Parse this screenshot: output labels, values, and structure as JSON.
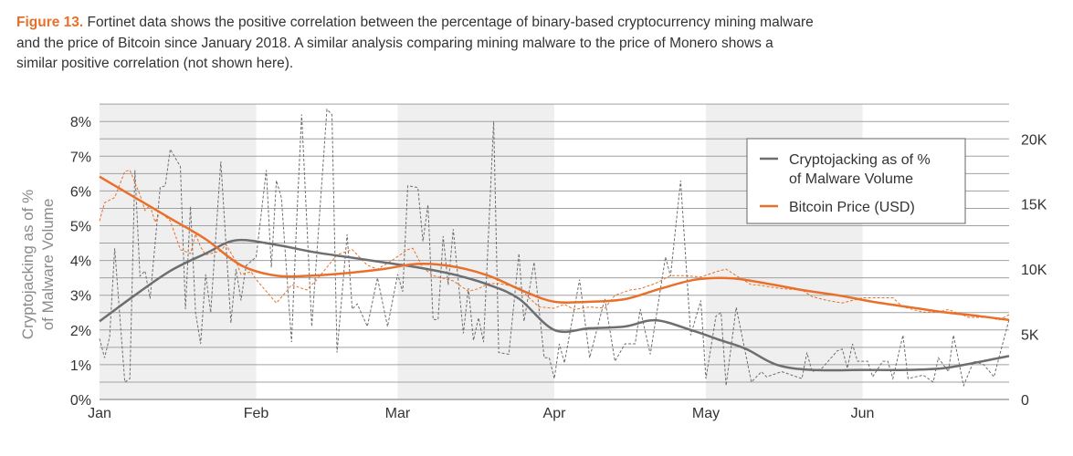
{
  "caption": {
    "label": "Figure 13.",
    "lines": [
      " Fortinet data shows the positive correlation between the percentage of binary-based cryptocurrency mining malware",
      "and the price of Bitcoin since January 2018. A similar analysis comparing mining malware to the price of Monero shows a",
      "similar positive correlation (not shown here)."
    ]
  },
  "chart_data": {
    "type": "line",
    "title": "",
    "ylabel": [
      "Cryptojacking as of %",
      "of Malware Volume"
    ],
    "y2label": "",
    "xlim": [
      "2018-01-01",
      "2018-06-30"
    ],
    "ylim": [
      0,
      8.5
    ],
    "y2lim": [
      0,
      22667
    ],
    "yticks": [
      "0%",
      "1%",
      "2%",
      "3%",
      "4%",
      "5%",
      "6%",
      "7%",
      "8%"
    ],
    "yticks_values": [
      0,
      1,
      2,
      3,
      4,
      5,
      6,
      7,
      8
    ],
    "y2ticks": [
      "0",
      "5K",
      "10K",
      "15K",
      "20K"
    ],
    "y2ticks_values": [
      0,
      5000,
      10000,
      15000,
      20000
    ],
    "xticks": [
      {
        "label": "Jan",
        "date": "2018-01-01"
      },
      {
        "label": "Feb",
        "date": "2018-02-01"
      },
      {
        "label": "Mar",
        "date": "2018-03-01"
      },
      {
        "label": "Apr",
        "date": "2018-04-01"
      },
      {
        "label": "May",
        "date": "2018-05-01"
      },
      {
        "label": "Jun",
        "date": "2018-06-01"
      }
    ],
    "shaded_months": [
      [
        "2018-01-01",
        "2018-02-01"
      ],
      [
        "2018-03-01",
        "2018-04-01"
      ],
      [
        "2018-05-01",
        "2018-06-01"
      ]
    ],
    "grid": true,
    "legend_placement": "top-right",
    "colors": {
      "cryptojacking": "#6d6e71",
      "bitcoin": "#e8702a",
      "shade": "#efefef",
      "grid": "#a0a0a0"
    },
    "legend": [
      {
        "lines": [
          "Cryptojacking as of %",
          "of Malware Volume"
        ],
        "series": "cryptojacking"
      },
      {
        "lines": [
          "Bitcoin Price (USD)"
        ],
        "series": "bitcoin"
      }
    ],
    "series": [
      {
        "key": "cryptojacking",
        "name": "Cryptojacking as of % of Malware Volume",
        "axis": "left",
        "style": "trend",
        "points": [
          [
            "2018-01-01",
            2.25
          ],
          [
            "2018-01-08",
            3.0
          ],
          [
            "2018-01-15",
            3.7
          ],
          [
            "2018-01-22",
            4.2
          ],
          [
            "2018-01-28",
            4.58
          ],
          [
            "2018-02-05",
            4.45
          ],
          [
            "2018-02-12",
            4.25
          ],
          [
            "2018-02-19",
            4.1
          ],
          [
            "2018-02-26",
            3.95
          ],
          [
            "2018-03-05",
            3.8
          ],
          [
            "2018-03-12",
            3.6
          ],
          [
            "2018-03-19",
            3.3
          ],
          [
            "2018-03-25",
            2.9
          ],
          [
            "2018-04-01",
            2.0
          ],
          [
            "2018-04-08",
            2.05
          ],
          [
            "2018-04-15",
            2.1
          ],
          [
            "2018-04-21",
            2.28
          ],
          [
            "2018-04-28",
            2.0
          ],
          [
            "2018-05-04",
            1.7
          ],
          [
            "2018-05-09",
            1.45
          ],
          [
            "2018-05-15",
            1.0
          ],
          [
            "2018-05-22",
            0.85
          ],
          [
            "2018-06-01",
            0.85
          ],
          [
            "2018-06-10",
            0.85
          ],
          [
            "2018-06-17",
            0.9
          ],
          [
            "2018-06-23",
            1.05
          ],
          [
            "2018-06-30",
            1.25
          ]
        ]
      },
      {
        "key": "cryptojacking_raw",
        "axis": "left",
        "style": "dashed",
        "color_of": "cryptojacking",
        "points": [
          [
            "2018-01-01",
            1.75
          ],
          [
            "2018-01-02",
            1.2
          ],
          [
            "2018-01-03",
            1.8
          ],
          [
            "2018-01-04",
            4.35
          ],
          [
            "2018-01-06",
            0.5
          ],
          [
            "2018-01-07",
            0.6
          ],
          [
            "2018-01-08",
            6.6
          ],
          [
            "2018-01-09",
            3.55
          ],
          [
            "2018-01-10",
            3.7
          ],
          [
            "2018-01-11",
            2.9
          ],
          [
            "2018-01-13",
            6.1
          ],
          [
            "2018-01-14",
            6.15
          ],
          [
            "2018-01-15",
            7.2
          ],
          [
            "2018-01-17",
            6.7
          ],
          [
            "2018-01-18",
            2.6
          ],
          [
            "2018-01-19",
            5.55
          ],
          [
            "2018-01-20",
            2.5
          ],
          [
            "2018-01-21",
            1.6
          ],
          [
            "2018-01-22",
            3.6
          ],
          [
            "2018-01-23",
            2.5
          ],
          [
            "2018-01-25",
            6.85
          ],
          [
            "2018-01-27",
            2.2
          ],
          [
            "2018-01-28",
            3.75
          ],
          [
            "2018-01-29",
            2.85
          ],
          [
            "2018-01-30",
            3.85
          ],
          [
            "2018-02-01",
            4.1
          ],
          [
            "2018-02-03",
            6.6
          ],
          [
            "2018-02-04",
            3.8
          ],
          [
            "2018-02-05",
            6.3
          ],
          [
            "2018-02-06",
            5.8
          ],
          [
            "2018-02-08",
            1.65
          ],
          [
            "2018-02-09",
            5.1
          ],
          [
            "2018-02-10",
            8.2
          ],
          [
            "2018-02-12",
            2.1
          ],
          [
            "2018-02-15",
            8.35
          ],
          [
            "2018-02-16",
            8.2
          ],
          [
            "2018-02-17",
            1.35
          ],
          [
            "2018-02-19",
            4.75
          ],
          [
            "2018-02-20",
            2.6
          ],
          [
            "2018-02-21",
            2.75
          ],
          [
            "2018-02-23",
            2.1
          ],
          [
            "2018-02-25",
            3.5
          ],
          [
            "2018-02-27",
            2.1
          ],
          [
            "2018-03-01",
            3.6
          ],
          [
            "2018-03-02",
            3.1
          ],
          [
            "2018-03-03",
            6.15
          ],
          [
            "2018-03-05",
            6.1
          ],
          [
            "2018-03-06",
            4.55
          ],
          [
            "2018-03-07",
            5.6
          ],
          [
            "2018-03-08",
            2.3
          ],
          [
            "2018-03-09",
            2.3
          ],
          [
            "2018-03-10",
            4.7
          ],
          [
            "2018-03-11",
            3.3
          ],
          [
            "2018-03-12",
            4.9
          ],
          [
            "2018-03-14",
            1.9
          ],
          [
            "2018-03-15",
            3.2
          ],
          [
            "2018-03-16",
            1.7
          ],
          [
            "2018-03-17",
            2.35
          ],
          [
            "2018-03-18",
            1.65
          ],
          [
            "2018-03-20",
            8.0
          ],
          [
            "2018-03-21",
            1.35
          ],
          [
            "2018-03-23",
            1.3
          ],
          [
            "2018-03-25",
            4.2
          ],
          [
            "2018-03-26",
            2.25
          ],
          [
            "2018-03-28",
            3.95
          ],
          [
            "2018-03-30",
            1.2
          ],
          [
            "2018-03-31",
            1.2
          ],
          [
            "2018-04-01",
            0.6
          ],
          [
            "2018-04-02",
            1.6
          ],
          [
            "2018-04-03",
            1.05
          ],
          [
            "2018-04-06",
            3.45
          ],
          [
            "2018-04-08",
            1.2
          ],
          [
            "2018-04-11",
            2.9
          ],
          [
            "2018-04-13",
            1.1
          ],
          [
            "2018-04-15",
            1.6
          ],
          [
            "2018-04-17",
            1.6
          ],
          [
            "2018-04-18",
            2.6
          ],
          [
            "2018-04-20",
            1.3
          ],
          [
            "2018-04-23",
            4.1
          ],
          [
            "2018-04-24",
            3.55
          ],
          [
            "2018-04-26",
            6.3
          ],
          [
            "2018-04-28",
            1.85
          ],
          [
            "2018-04-30",
            2.85
          ],
          [
            "2018-05-01",
            0.6
          ],
          [
            "2018-05-03",
            2.4
          ],
          [
            "2018-05-04",
            2.5
          ],
          [
            "2018-05-05",
            0.4
          ],
          [
            "2018-05-07",
            2.65
          ],
          [
            "2018-05-10",
            0.5
          ],
          [
            "2018-05-12",
            0.8
          ],
          [
            "2018-05-13",
            0.65
          ],
          [
            "2018-05-16",
            0.8
          ],
          [
            "2018-05-20",
            0.6
          ],
          [
            "2018-05-21",
            1.35
          ],
          [
            "2018-05-22",
            0.8
          ],
          [
            "2018-05-24",
            0.9
          ],
          [
            "2018-05-27",
            1.4
          ],
          [
            "2018-05-28",
            1.45
          ],
          [
            "2018-05-29",
            0.9
          ],
          [
            "2018-05-30",
            1.6
          ],
          [
            "2018-05-31",
            1.1
          ],
          [
            "2018-06-02",
            1.1
          ],
          [
            "2018-06-03",
            0.65
          ],
          [
            "2018-06-05",
            1.1
          ],
          [
            "2018-06-06",
            1.1
          ],
          [
            "2018-06-07",
            0.6
          ],
          [
            "2018-06-09",
            1.85
          ],
          [
            "2018-06-10",
            0.6
          ],
          [
            "2018-06-13",
            0.7
          ],
          [
            "2018-06-15",
            0.5
          ],
          [
            "2018-06-16",
            1.2
          ],
          [
            "2018-06-18",
            0.8
          ],
          [
            "2018-06-19",
            1.85
          ],
          [
            "2018-06-21",
            0.4
          ],
          [
            "2018-06-23",
            1.1
          ],
          [
            "2018-06-25",
            1.0
          ],
          [
            "2018-06-27",
            0.65
          ],
          [
            "2018-06-30",
            2.3
          ]
        ]
      },
      {
        "key": "bitcoin",
        "name": "Bitcoin Price (USD)",
        "axis": "right",
        "style": "trend",
        "points": [
          [
            "2018-01-01",
            17100
          ],
          [
            "2018-01-08",
            15500
          ],
          [
            "2018-01-15",
            13900
          ],
          [
            "2018-01-22",
            12300
          ],
          [
            "2018-01-29",
            10300
          ],
          [
            "2018-02-05",
            9500
          ],
          [
            "2018-02-12",
            9500
          ],
          [
            "2018-02-19",
            9700
          ],
          [
            "2018-02-26",
            10000
          ],
          [
            "2018-03-05",
            10400
          ],
          [
            "2018-03-12",
            10200
          ],
          [
            "2018-03-19",
            9500
          ],
          [
            "2018-03-26",
            8300
          ],
          [
            "2018-04-01",
            7500
          ],
          [
            "2018-04-08",
            7500
          ],
          [
            "2018-04-15",
            7700
          ],
          [
            "2018-04-22",
            8500
          ],
          [
            "2018-04-29",
            9200
          ],
          [
            "2018-05-06",
            9300
          ],
          [
            "2018-05-13",
            8900
          ],
          [
            "2018-05-20",
            8400
          ],
          [
            "2018-05-27",
            8000
          ],
          [
            "2018-06-03",
            7500
          ],
          [
            "2018-06-10",
            7100
          ],
          [
            "2018-06-17",
            6700
          ],
          [
            "2018-06-24",
            6400
          ],
          [
            "2018-06-30",
            6100
          ]
        ]
      },
      {
        "key": "bitcoin_raw",
        "axis": "right",
        "style": "dashed",
        "color_of": "bitcoin",
        "points": [
          [
            "2018-01-01",
            13700
          ],
          [
            "2018-01-02",
            15100
          ],
          [
            "2018-01-04",
            15500
          ],
          [
            "2018-01-06",
            17500
          ],
          [
            "2018-01-07",
            17600
          ],
          [
            "2018-01-09",
            15700
          ],
          [
            "2018-01-10",
            14500
          ],
          [
            "2018-01-11",
            14900
          ],
          [
            "2018-01-12",
            13600
          ],
          [
            "2018-01-13",
            14400
          ],
          [
            "2018-01-15",
            13700
          ],
          [
            "2018-01-17",
            11500
          ],
          [
            "2018-01-19",
            11200
          ],
          [
            "2018-01-20",
            12700
          ],
          [
            "2018-01-21",
            11700
          ],
          [
            "2018-01-22",
            11100
          ],
          [
            "2018-01-24",
            11300
          ],
          [
            "2018-01-25",
            11400
          ],
          [
            "2018-01-26",
            11900
          ],
          [
            "2018-01-28",
            10600
          ],
          [
            "2018-01-29",
            9600
          ],
          [
            "2018-01-31",
            9800
          ],
          [
            "2018-02-01",
            9200
          ],
          [
            "2018-02-05",
            7400
          ],
          [
            "2018-02-07",
            8300
          ],
          [
            "2018-02-08",
            8800
          ],
          [
            "2018-02-11",
            8400
          ],
          [
            "2018-02-13",
            9200
          ],
          [
            "2018-02-17",
            11100
          ],
          [
            "2018-02-20",
            11500
          ],
          [
            "2018-02-23",
            10300
          ],
          [
            "2018-02-25",
            10000
          ],
          [
            "2018-02-28",
            10700
          ],
          [
            "2018-03-03",
            11500
          ],
          [
            "2018-03-04",
            11600
          ],
          [
            "2018-03-06",
            10100
          ],
          [
            "2018-03-08",
            9500
          ],
          [
            "2018-03-10",
            9300
          ],
          [
            "2018-03-12",
            9100
          ],
          [
            "2018-03-15",
            8300
          ],
          [
            "2018-03-17",
            8500
          ],
          [
            "2018-03-19",
            8900
          ],
          [
            "2018-03-21",
            8900
          ],
          [
            "2018-03-25",
            8600
          ],
          [
            "2018-03-27",
            7800
          ],
          [
            "2018-03-29",
            7100
          ],
          [
            "2018-04-01",
            7000
          ],
          [
            "2018-04-03",
            7300
          ],
          [
            "2018-04-05",
            6900
          ],
          [
            "2018-04-08",
            7100
          ],
          [
            "2018-04-11",
            7000
          ],
          [
            "2018-04-13",
            8000
          ],
          [
            "2018-04-16",
            8400
          ],
          [
            "2018-04-18",
            8500
          ],
          [
            "2018-04-21",
            8900
          ],
          [
            "2018-04-24",
            9500
          ],
          [
            "2018-04-27",
            9500
          ],
          [
            "2018-04-30",
            9400
          ],
          [
            "2018-05-03",
            9800
          ],
          [
            "2018-05-05",
            10000
          ],
          [
            "2018-05-07",
            9500
          ],
          [
            "2018-05-10",
            8800
          ],
          [
            "2018-05-11",
            8800
          ],
          [
            "2018-05-16",
            8500
          ],
          [
            "2018-05-20",
            8400
          ],
          [
            "2018-05-22",
            7900
          ],
          [
            "2018-05-25",
            7600
          ],
          [
            "2018-05-28",
            7400
          ],
          [
            "2018-06-01",
            7800
          ],
          [
            "2018-06-07",
            7800
          ],
          [
            "2018-06-09",
            7100
          ],
          [
            "2018-06-13",
            6700
          ],
          [
            "2018-06-16",
            6700
          ],
          [
            "2018-06-18",
            6900
          ],
          [
            "2018-06-20",
            6600
          ],
          [
            "2018-06-22",
            6300
          ],
          [
            "2018-06-26",
            6300
          ],
          [
            "2018-06-28",
            6100
          ],
          [
            "2018-06-30",
            6500
          ]
        ]
      }
    ]
  }
}
